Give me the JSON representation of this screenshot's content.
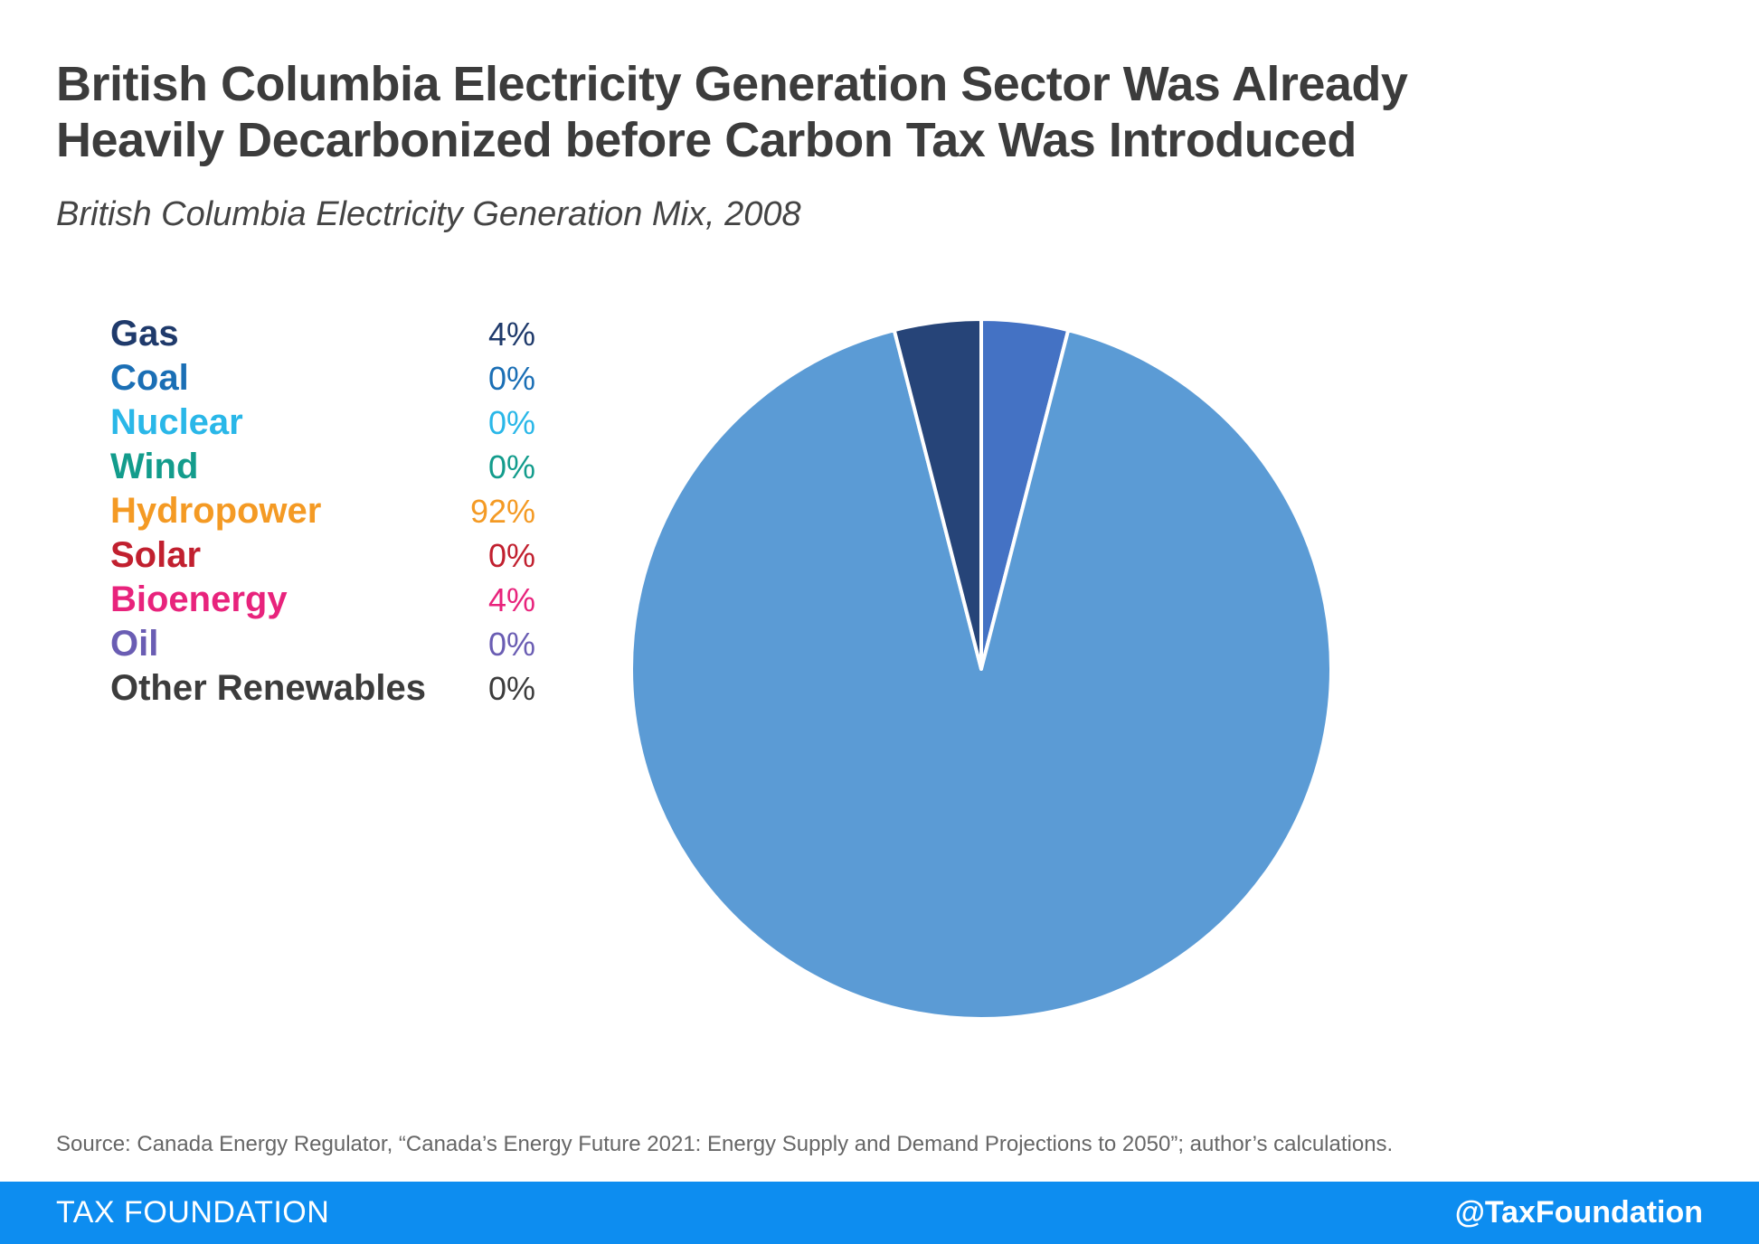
{
  "header": {
    "title_line1": "British Columbia Electricity Generation Sector Was Already",
    "title_line2": "Heavily Decarbonized before Carbon Tax Was Introduced",
    "subtitle": "British Columbia Electricity Generation Mix, 2008"
  },
  "chart_data": {
    "type": "pie",
    "title": "British Columbia Electricity Generation Sector Was Already Heavily Decarbonized before Carbon Tax Was Introduced",
    "subtitle": "British Columbia Electricity Generation Mix, 2008",
    "legend_position": "left",
    "slices": [
      {
        "label": "Gas",
        "value_label": "4%",
        "value": 4,
        "label_color": "#1f3a6b",
        "fill": "#264478"
      },
      {
        "label": "Coal",
        "value_label": "0%",
        "value": 0,
        "label_color": "#1b6fb5",
        "fill": "#1b6fb5"
      },
      {
        "label": "Nuclear",
        "value_label": "0%",
        "value": 0,
        "label_color": "#2ab7e8",
        "fill": "#2ab7e8"
      },
      {
        "label": "Wind",
        "value_label": "0%",
        "value": 0,
        "label_color": "#139c8c",
        "fill": "#139c8c"
      },
      {
        "label": "Hydropower",
        "value_label": "92%",
        "value": 92,
        "label_color": "#f49a24",
        "fill": "#5b9bd5"
      },
      {
        "label": "Solar",
        "value_label": "0%",
        "value": 0,
        "label_color": "#c1202f",
        "fill": "#c1202f"
      },
      {
        "label": "Bioenergy",
        "value_label": "4%",
        "value": 4,
        "label_color": "#e8237c",
        "fill": "#4472c4"
      },
      {
        "label": "Oil",
        "value_label": "0%",
        "value": 0,
        "label_color": "#6a5db3",
        "fill": "#6a5db3"
      },
      {
        "label": "Other Renewables",
        "value_label": "0%",
        "value": 0,
        "label_color": "#3c3c3c",
        "fill": "#3c3c3c"
      }
    ],
    "clockwise_order_from_top": [
      "Bioenergy",
      "Hydropower",
      "Gas"
    ]
  },
  "source": "Source: Canada Energy Regulator, “Canada’s Energy Future 2021: Energy Supply and Demand Projections to 2050”; author’s calculations.",
  "footer": {
    "brand": "TAX FOUNDATION",
    "handle": "@TaxFoundation",
    "bar_color": "#0d8df0"
  }
}
